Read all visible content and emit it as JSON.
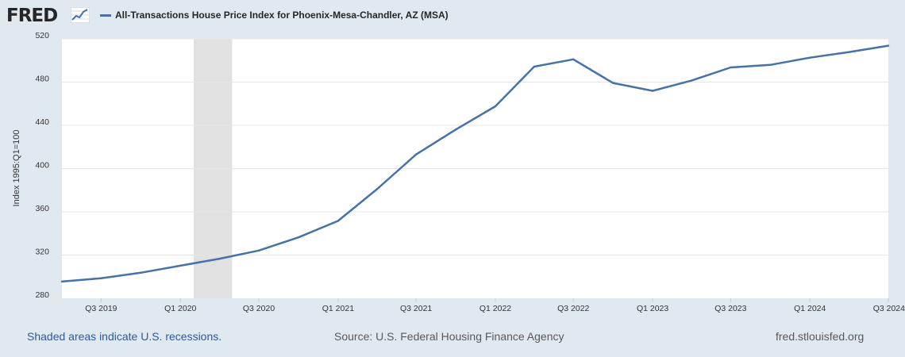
{
  "header": {
    "logo_text": "FRED",
    "logo_icon": "trend-line-icon",
    "legend_label": "All-Transactions House Price Index for Phoenix-Mesa-Chandler, AZ (MSA)"
  },
  "colors": {
    "series_line": "#4572a7",
    "recession_shade": "#e1e1e1",
    "background": "#e1e9f0",
    "plot_background": "#ffffff",
    "grid": "#e6e6e6",
    "footer_link": "#2a5a9f"
  },
  "chart_data": {
    "type": "line",
    "title": "All-Transactions House Price Index for Phoenix-Mesa-Chandler, AZ (MSA)",
    "ylabel": "Index 1995:Q1=100",
    "xlabel": "",
    "ylim": [
      280,
      520
    ],
    "yticks": [
      "280",
      "320",
      "360",
      "400",
      "440",
      "480",
      "520"
    ],
    "xticks": [
      "Q3 2019",
      "Q1 2020",
      "Q3 2020",
      "Q1 2021",
      "Q3 2021",
      "Q1 2022",
      "Q3 2022",
      "Q1 2023",
      "Q3 2023",
      "Q1 2024",
      "Q3 2024"
    ],
    "grid": true,
    "legend": "top-left",
    "recession_shading": [
      {
        "start": "2020-02-01",
        "end": "2020-04-30"
      }
    ],
    "series": [
      {
        "name": "All-Transactions House Price Index for Phoenix-Mesa-Chandler, AZ (MSA)",
        "x": [
          "2019-04-01",
          "2019-07-01",
          "2019-10-01",
          "2020-01-01",
          "2020-04-01",
          "2020-07-01",
          "2020-10-01",
          "2021-01-01",
          "2021-04-01",
          "2021-07-01",
          "2021-10-01",
          "2022-01-01",
          "2022-04-01",
          "2022-07-01",
          "2022-10-01",
          "2023-01-01",
          "2023-04-01",
          "2023-07-01",
          "2023-10-01",
          "2024-01-01",
          "2024-04-01",
          "2024-07-01"
        ],
        "values": [
          295.5,
          298.6,
          303.6,
          310.2,
          316.6,
          324.2,
          336.4,
          351.6,
          380.9,
          413.1,
          436.1,
          457.6,
          494.3,
          501.1,
          479.2,
          471.9,
          481.4,
          493.6,
          495.9,
          502.6,
          507.8,
          513.7
        ]
      }
    ]
  },
  "footer": {
    "recession_note": "Shaded areas indicate U.S. recessions.",
    "source": "Source: U.S. Federal Housing Finance Agency",
    "site": "fred.stlouisfed.org"
  }
}
